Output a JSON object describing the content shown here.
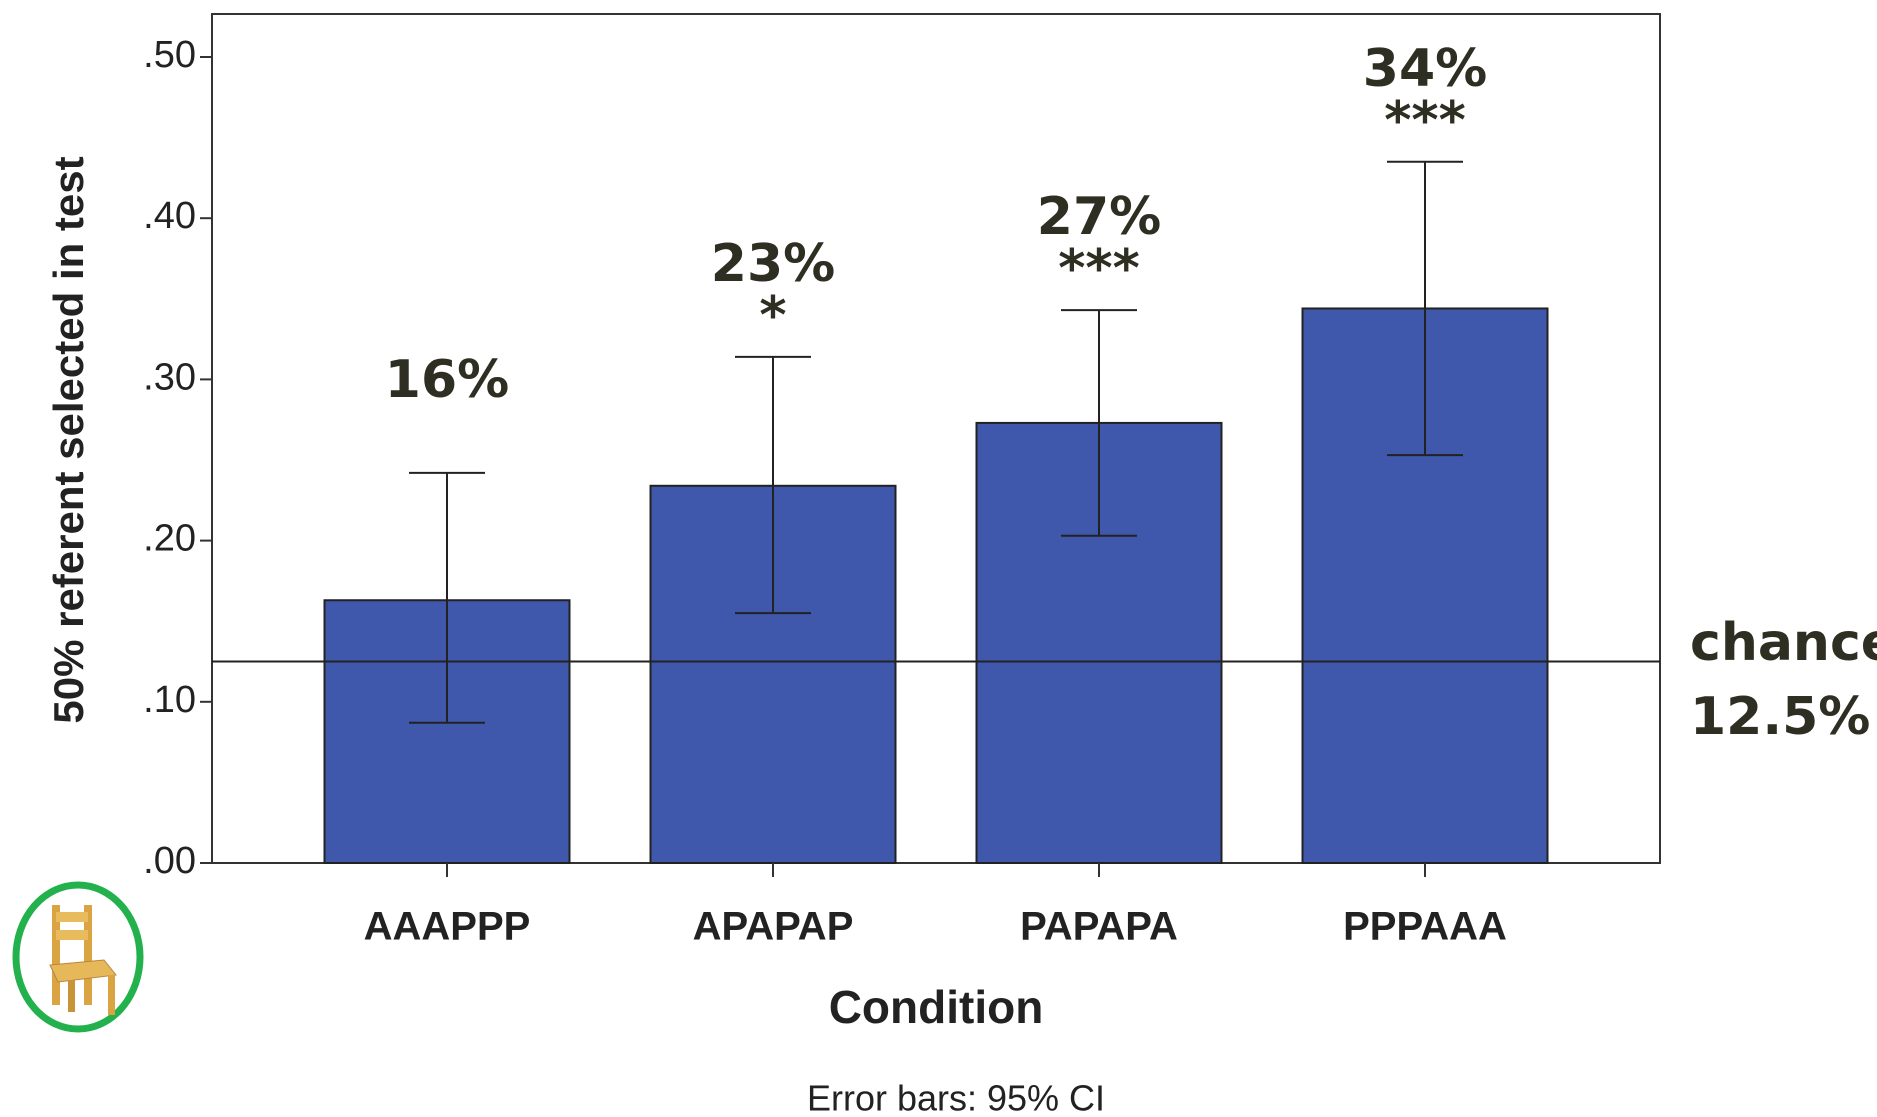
{
  "chart_data": {
    "type": "bar",
    "y_label": "50% referent selected in test",
    "x_label": "Condition",
    "footnote": "Error bars: 95% CI",
    "categories": [
      "AAAPPP",
      "APAPAP",
      "PAPAPA",
      "PPPAAA"
    ],
    "values": [
      0.163,
      0.234,
      0.273,
      0.344
    ],
    "value_labels": [
      "16%",
      "23%",
      "27%",
      "34%"
    ],
    "ci_low": [
      0.087,
      0.155,
      0.203,
      0.253
    ],
    "ci_high": [
      0.242,
      0.314,
      0.343,
      0.435
    ],
    "significance": [
      null,
      "*",
      "***",
      "***"
    ],
    "color": "#3f58ab",
    "ylim": [
      0,
      0.5
    ],
    "yticks": [
      {
        "value": 0,
        "label": ".00"
      },
      {
        "value": 0.1,
        "label": ".10"
      },
      {
        "value": 0.2,
        "label": ".20"
      },
      {
        "value": 0.3,
        "label": ".30"
      },
      {
        "value": 0.4,
        "label": ".40"
      },
      {
        "value": 0.5,
        "label": ".50"
      }
    ],
    "reference_line": {
      "value": 0.125,
      "label": [
        "chance",
        "12.5%"
      ]
    }
  }
}
